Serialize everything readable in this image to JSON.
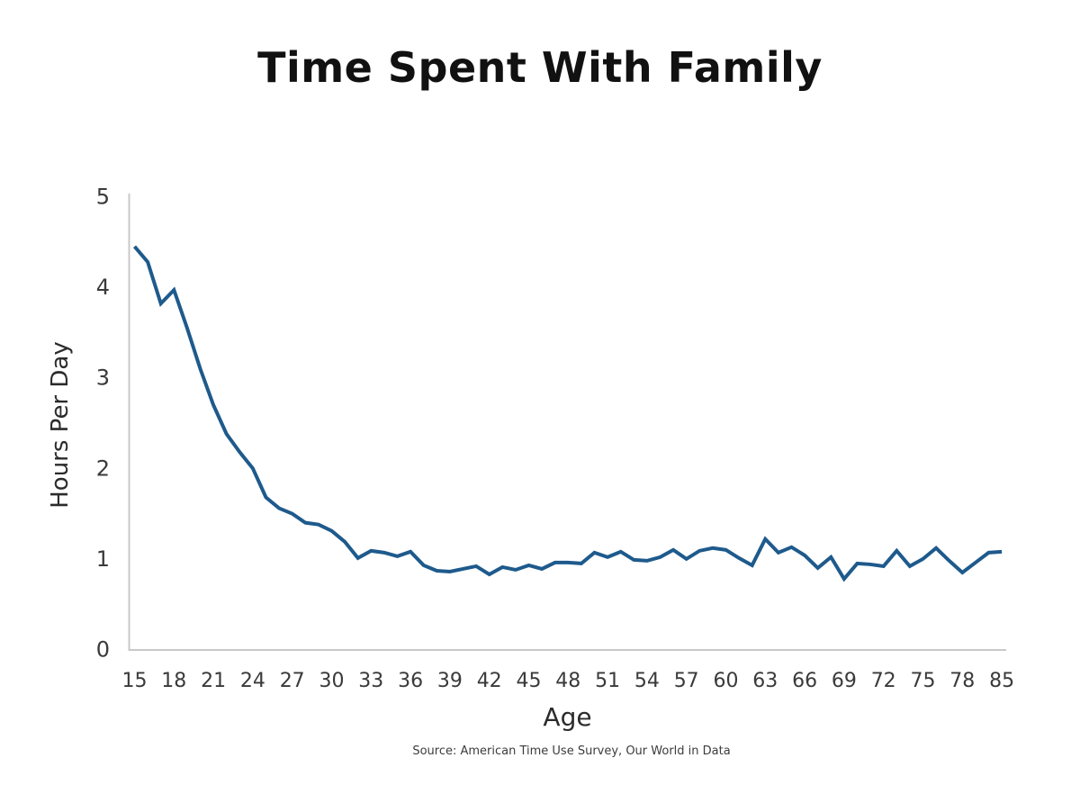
{
  "chart_data": {
    "type": "line",
    "title": "Time Spent With Family",
    "xlabel": "Age",
    "ylabel": "Hours Per Day",
    "source": "Source: American Time Use Survey, Our World in Data",
    "x": [
      15,
      16,
      17,
      18,
      19,
      20,
      21,
      22,
      23,
      24,
      25,
      26,
      27,
      28,
      29,
      30,
      31,
      32,
      33,
      34,
      35,
      36,
      37,
      38,
      39,
      40,
      41,
      42,
      43,
      44,
      45,
      46,
      47,
      48,
      49,
      50,
      51,
      52,
      53,
      54,
      55,
      56,
      57,
      58,
      59,
      60,
      61,
      62,
      63,
      64,
      65,
      66,
      67,
      68,
      69,
      70,
      71,
      72,
      73,
      74,
      75,
      76,
      77,
      78,
      79,
      80,
      85
    ],
    "values": [
      4.45,
      4.28,
      3.82,
      3.97,
      3.55,
      3.1,
      2.7,
      2.38,
      2.18,
      2.0,
      1.68,
      1.56,
      1.5,
      1.4,
      1.38,
      1.31,
      1.19,
      1.01,
      1.09,
      1.07,
      1.03,
      1.08,
      0.93,
      0.87,
      0.86,
      0.89,
      0.92,
      0.83,
      0.91,
      0.88,
      0.93,
      0.89,
      0.96,
      0.96,
      0.95,
      1.07,
      1.02,
      1.08,
      0.99,
      0.98,
      1.02,
      1.1,
      1.0,
      1.09,
      1.12,
      1.1,
      1.01,
      0.93,
      1.22,
      1.07,
      1.13,
      1.04,
      0.9,
      1.02,
      0.78,
      0.95,
      0.94,
      0.92,
      1.09,
      0.92,
      1.0,
      1.12,
      0.98,
      0.85,
      0.96,
      1.07,
      1.08
    ],
    "x_tick_labels": [
      "15",
      "18",
      "21",
      "24",
      "27",
      "30",
      "33",
      "36",
      "39",
      "42",
      "45",
      "48",
      "51",
      "54",
      "57",
      "60",
      "63",
      "66",
      "69",
      "72",
      "75",
      "78",
      "85"
    ],
    "yticks": [
      0,
      1,
      2,
      3,
      4,
      5
    ],
    "ylim": [
      0,
      5
    ],
    "x_spacing": "categorical",
    "grid": false,
    "legend": "none",
    "line_color": "#1e5a8c",
    "axis_color": "#c9c9c9",
    "tick_label_color": "#3a3a3a",
    "title_color": "#111111"
  }
}
